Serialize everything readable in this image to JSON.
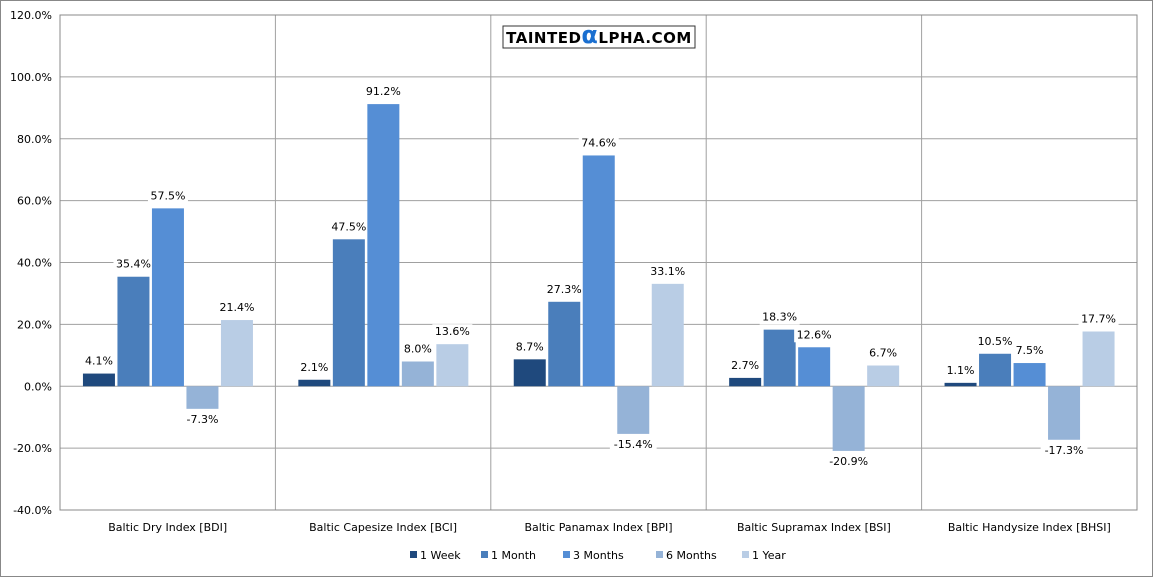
{
  "logo": {
    "text_left": "TAINTED",
    "alpha": "α",
    "text_right": "LPHA.COM"
  },
  "chart_data": {
    "type": "bar",
    "title": "",
    "categories": [
      "Baltic Dry Index [BDI]",
      "Baltic Capesize Index [BCI]",
      "Baltic Panamax Index [BPI]",
      "Baltic Supramax Index [BSI]",
      "Baltic Handysize Index [BHSI]"
    ],
    "series": [
      {
        "name": "1 Week",
        "color": "#1f497d",
        "values": [
          4.1,
          2.1,
          8.7,
          2.7,
          1.1
        ]
      },
      {
        "name": "1 Month",
        "color": "#4a7ebb",
        "values": [
          35.4,
          47.5,
          27.3,
          18.3,
          10.5
        ]
      },
      {
        "name": "3 Months",
        "color": "#558ed5",
        "values": [
          57.5,
          91.2,
          74.6,
          12.6,
          7.5
        ]
      },
      {
        "name": "6 Months",
        "color": "#95b3d7",
        "values": [
          -7.3,
          8.0,
          -15.4,
          -20.9,
          -17.3
        ]
      },
      {
        "name": "1 Year",
        "color": "#b9cde5",
        "values": [
          21.4,
          13.6,
          33.1,
          6.7,
          17.7
        ]
      }
    ],
    "ylim": [
      -40,
      120
    ],
    "yticks": [
      -40,
      -20,
      0,
      20,
      40,
      60,
      80,
      100,
      120
    ],
    "ytick_format": "percent_1dp",
    "grid": true,
    "legend": "bottom",
    "xlabel": "",
    "ylabel": ""
  }
}
